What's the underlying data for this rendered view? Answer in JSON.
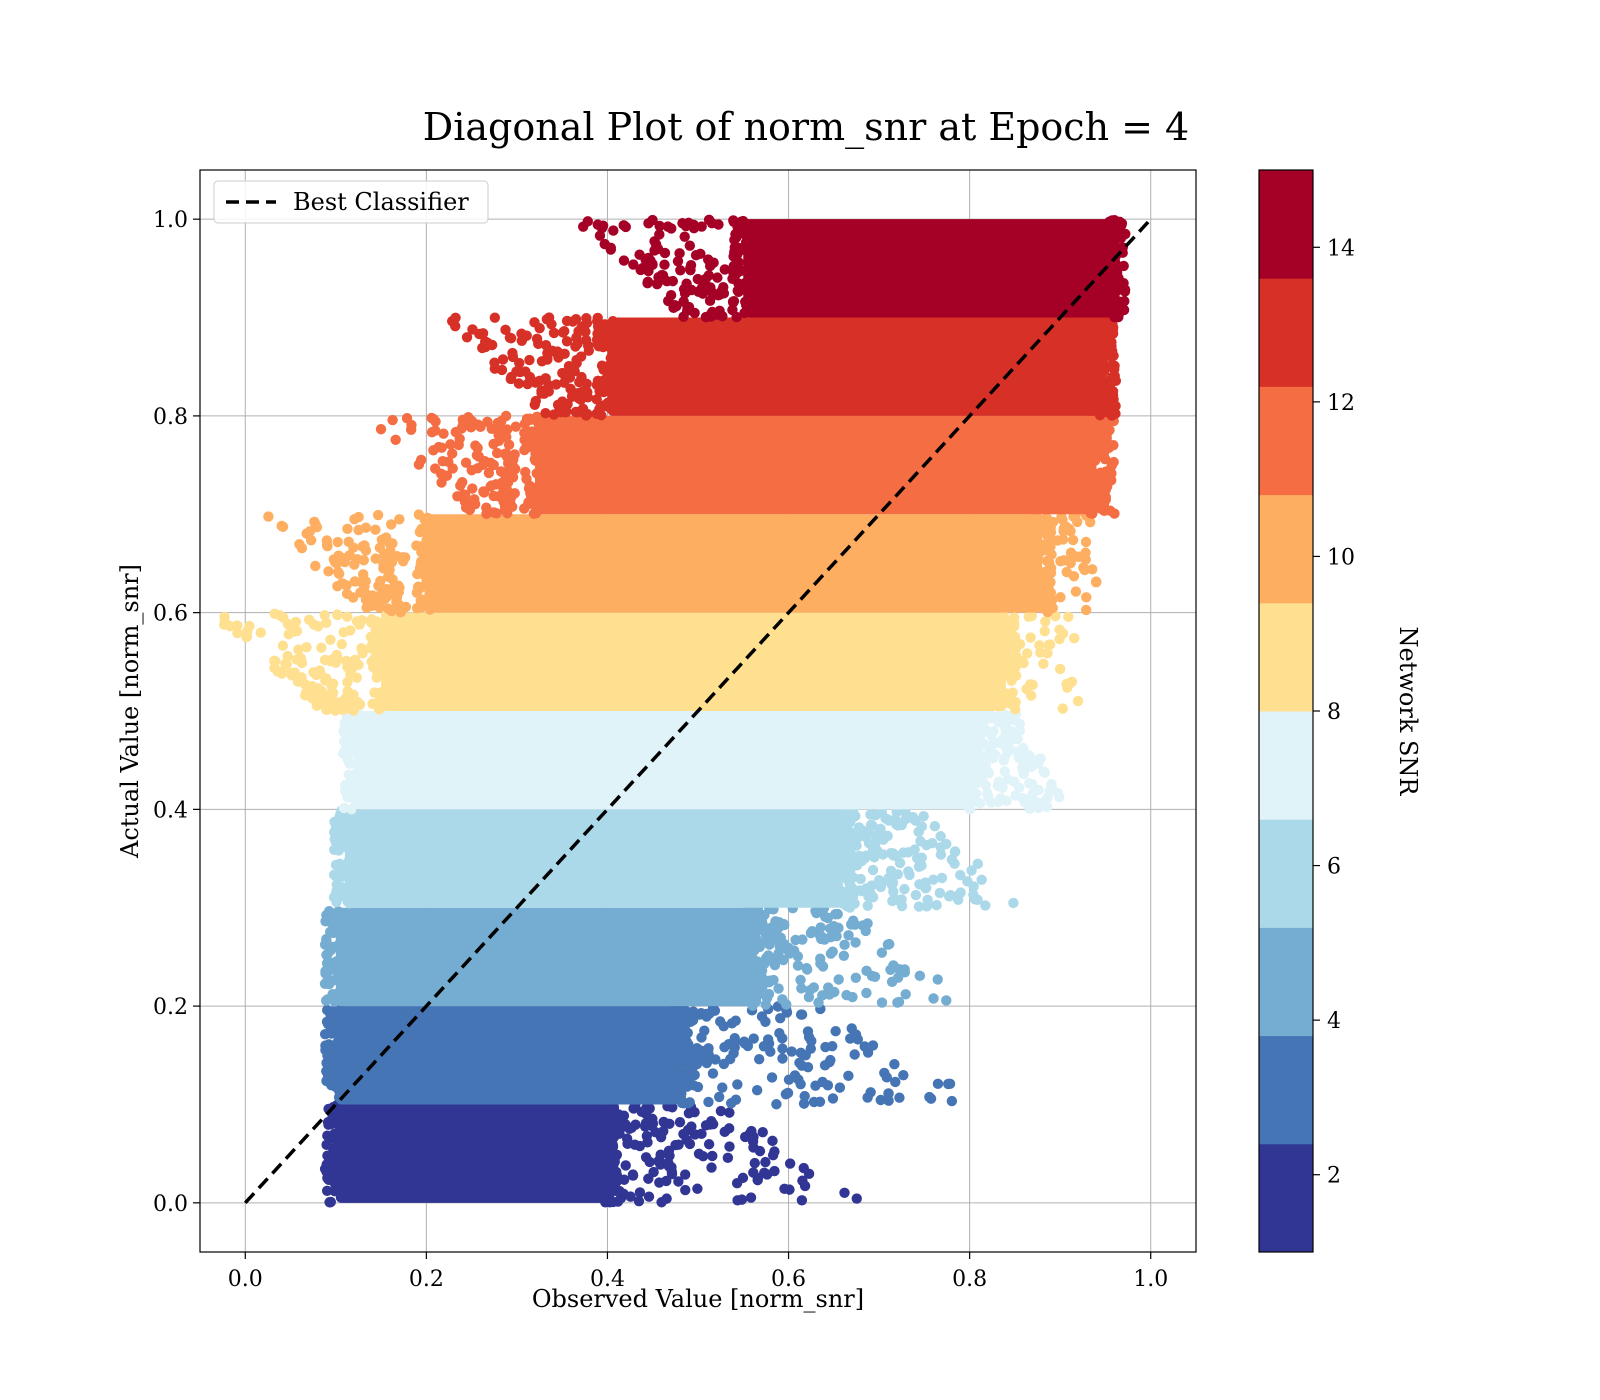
{
  "chart_data": {
    "type": "scatter",
    "title": "Diagonal Plot of norm_snr at Epoch = 4",
    "xlabel": "Observed Value [norm_snr]",
    "ylabel": "Actual Value [norm_snr]",
    "xlim": [
      -0.05,
      1.05
    ],
    "ylim": [
      -0.05,
      1.05
    ],
    "x_ticks": [
      "0.0",
      "0.2",
      "0.4",
      "0.6",
      "0.8",
      "1.0"
    ],
    "y_ticks": [
      "0.0",
      "0.2",
      "0.4",
      "0.6",
      "0.8",
      "1.0"
    ],
    "grid": true,
    "legend": {
      "placement": "top-left",
      "entries": [
        "Best Classifier"
      ]
    },
    "reference_line": {
      "name": "Best Classifier",
      "style": "dashed",
      "color": "#000000",
      "x": [
        0.0,
        1.0
      ],
      "y": [
        0.0,
        1.0
      ]
    },
    "colorbar": {
      "label": "Network SNR",
      "range": [
        1,
        15
      ],
      "ticks": [
        "2",
        "4",
        "6",
        "8",
        "10",
        "12",
        "14"
      ],
      "colors": [
        "#313695",
        "#4575b4",
        "#74add1",
        "#abd9e9",
        "#e0f3f8",
        "#fee090",
        "#fdae61",
        "#f46d43",
        "#d73027",
        "#a50026"
      ]
    },
    "bands": [
      {
        "ymin": 0.0,
        "ymax": 0.1,
        "core_x": [
          0.1,
          0.4
        ],
        "tail_x": 0.66,
        "color": "#313695"
      },
      {
        "ymin": 0.1,
        "ymax": 0.2,
        "core_x": [
          0.1,
          0.48
        ],
        "tail_x": 0.8,
        "color": "#4575b4"
      },
      {
        "ymin": 0.2,
        "ymax": 0.3,
        "core_x": [
          0.1,
          0.56
        ],
        "tail_x": 0.78,
        "color": "#74add1"
      },
      {
        "ymin": 0.3,
        "ymax": 0.4,
        "core_x": [
          0.11,
          0.66
        ],
        "tail_x": 0.84,
        "color": "#abd9e9"
      },
      {
        "ymin": 0.4,
        "ymax": 0.5,
        "core_x": [
          0.12,
          0.8
        ],
        "tail_x": 0.9,
        "color": "#e0f3f8"
      },
      {
        "ymin": 0.5,
        "ymax": 0.6,
        "core_x": [
          0.15,
          0.84
        ],
        "tail_x": 0.92,
        "color": "#fee090"
      },
      {
        "ymin": 0.6,
        "ymax": 0.7,
        "core_x": [
          0.2,
          0.88
        ],
        "tail_x": 0.94,
        "color": "#fdae61"
      },
      {
        "ymin": 0.7,
        "ymax": 0.8,
        "core_x": [
          0.32,
          0.94
        ],
        "tail_x": 0.96,
        "color": "#f46d43"
      },
      {
        "ymin": 0.8,
        "ymax": 0.9,
        "core_x": [
          0.4,
          0.95
        ],
        "tail_x": 0.96,
        "color": "#d73027"
      },
      {
        "ymin": 0.9,
        "ymax": 1.0,
        "core_x": [
          0.55,
          0.96
        ],
        "tail_x": 0.96,
        "color": "#a50026"
      }
    ]
  }
}
